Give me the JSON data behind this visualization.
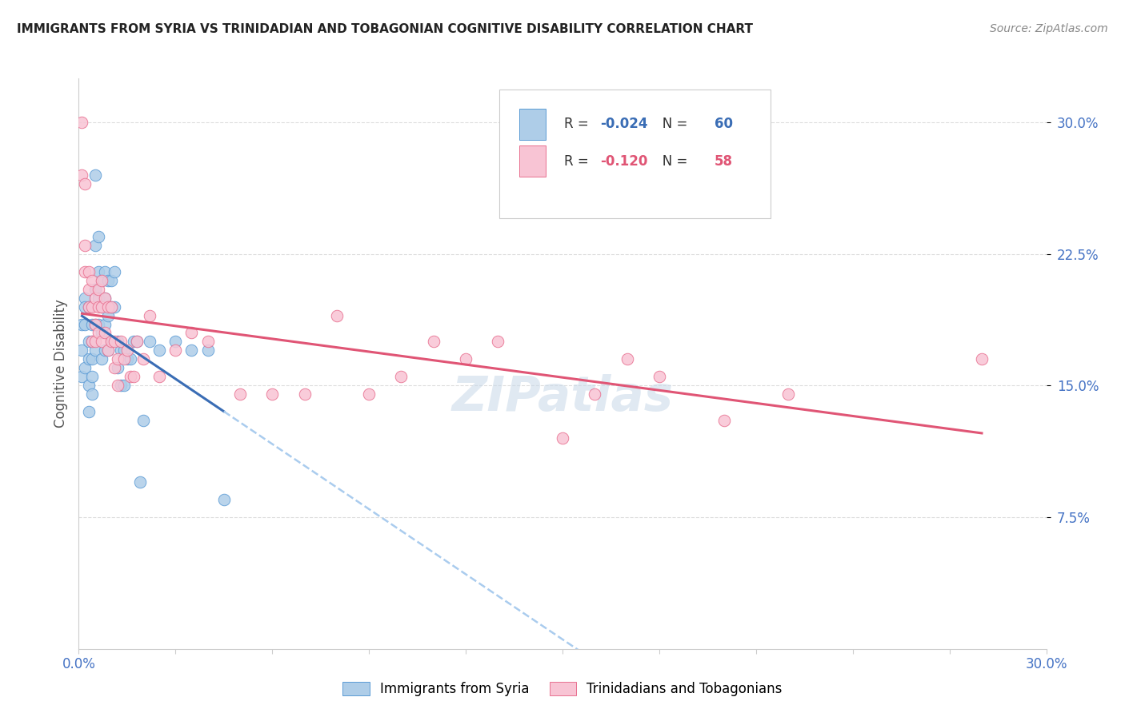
{
  "title": "IMMIGRANTS FROM SYRIA VS TRINIDADIAN AND TOBAGONIAN COGNITIVE DISABILITY CORRELATION CHART",
  "source": "Source: ZipAtlas.com",
  "ylabel": "Cognitive Disability",
  "R1": -0.024,
  "N1": 60,
  "R2": -0.12,
  "N2": 58,
  "color_blue_fill": "#AECDE8",
  "color_blue_edge": "#5B9BD5",
  "color_pink_fill": "#F8C4D4",
  "color_pink_edge": "#E87090",
  "color_line_blue": "#3A6DB5",
  "color_line_pink": "#E05575",
  "color_dashed": "#AACCEE",
  "axis_tick_color": "#4472C4",
  "title_color": "#222222",
  "source_color": "#888888",
  "grid_color": "#DDDDDD",
  "background_color": "#FFFFFF",
  "legend1_label": "Immigrants from Syria",
  "legend2_label": "Trinidadians and Tobagonians",
  "xlim": [
    0.0,
    0.3
  ],
  "ylim": [
    0.0,
    0.325
  ],
  "y_ticks": [
    0.075,
    0.15,
    0.225,
    0.3
  ],
  "syria_x": [
    0.001,
    0.001,
    0.001,
    0.002,
    0.002,
    0.002,
    0.002,
    0.003,
    0.003,
    0.003,
    0.003,
    0.003,
    0.004,
    0.004,
    0.004,
    0.004,
    0.004,
    0.005,
    0.005,
    0.005,
    0.005,
    0.005,
    0.006,
    0.006,
    0.006,
    0.006,
    0.007,
    0.007,
    0.007,
    0.007,
    0.008,
    0.008,
    0.008,
    0.008,
    0.009,
    0.009,
    0.009,
    0.01,
    0.01,
    0.01,
    0.011,
    0.011,
    0.012,
    0.012,
    0.013,
    0.013,
    0.014,
    0.014,
    0.015,
    0.016,
    0.017,
    0.018,
    0.019,
    0.02,
    0.022,
    0.025,
    0.03,
    0.035,
    0.04,
    0.045
  ],
  "syria_y": [
    0.17,
    0.185,
    0.155,
    0.2,
    0.185,
    0.195,
    0.16,
    0.195,
    0.175,
    0.165,
    0.15,
    0.135,
    0.185,
    0.175,
    0.165,
    0.155,
    0.145,
    0.27,
    0.23,
    0.205,
    0.185,
    0.17,
    0.235,
    0.215,
    0.2,
    0.185,
    0.21,
    0.195,
    0.18,
    0.165,
    0.215,
    0.2,
    0.185,
    0.17,
    0.21,
    0.19,
    0.17,
    0.21,
    0.195,
    0.175,
    0.215,
    0.195,
    0.175,
    0.16,
    0.17,
    0.15,
    0.17,
    0.15,
    0.165,
    0.165,
    0.175,
    0.175,
    0.095,
    0.13,
    0.175,
    0.17,
    0.175,
    0.17,
    0.17,
    0.085
  ],
  "tnt_x": [
    0.001,
    0.001,
    0.002,
    0.002,
    0.002,
    0.003,
    0.003,
    0.003,
    0.004,
    0.004,
    0.004,
    0.005,
    0.005,
    0.005,
    0.006,
    0.006,
    0.006,
    0.007,
    0.007,
    0.007,
    0.008,
    0.008,
    0.009,
    0.009,
    0.01,
    0.01,
    0.011,
    0.011,
    0.012,
    0.012,
    0.013,
    0.014,
    0.015,
    0.016,
    0.017,
    0.018,
    0.02,
    0.022,
    0.025,
    0.03,
    0.035,
    0.04,
    0.05,
    0.06,
    0.07,
    0.08,
    0.09,
    0.1,
    0.11,
    0.12,
    0.13,
    0.15,
    0.16,
    0.17,
    0.18,
    0.2,
    0.22,
    0.28
  ],
  "tnt_y": [
    0.3,
    0.27,
    0.265,
    0.23,
    0.215,
    0.215,
    0.205,
    0.195,
    0.21,
    0.195,
    0.175,
    0.2,
    0.185,
    0.175,
    0.205,
    0.195,
    0.18,
    0.21,
    0.195,
    0.175,
    0.2,
    0.18,
    0.195,
    0.17,
    0.195,
    0.175,
    0.175,
    0.16,
    0.165,
    0.15,
    0.175,
    0.165,
    0.17,
    0.155,
    0.155,
    0.175,
    0.165,
    0.19,
    0.155,
    0.17,
    0.18,
    0.175,
    0.145,
    0.145,
    0.145,
    0.19,
    0.145,
    0.155,
    0.175,
    0.165,
    0.175,
    0.12,
    0.145,
    0.165,
    0.155,
    0.13,
    0.145,
    0.165
  ]
}
